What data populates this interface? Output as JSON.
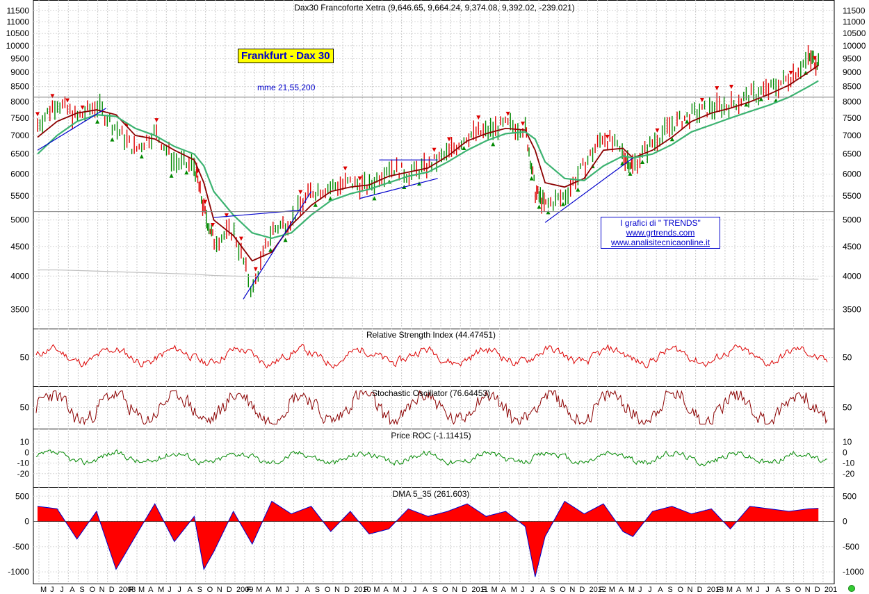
{
  "title": "Dax30 Francoforte Xetra (9,646.65, 9,664.24, 9,374.08, 9,392.02, -239.021)",
  "brand_label": "Frankfurt - Dax 30",
  "ma_label": "mme 21,55,200",
  "credit": {
    "line1": "I grafici di \" TRENDS\"",
    "line2": "www.grtrends.com",
    "line3": "www.analisitecnicaonline.it"
  },
  "colors": {
    "price_up": "#008800",
    "price_down": "#dd0000",
    "ma21": "#8b0000",
    "ma55": "#3cb371",
    "ma200": "#c0c0c0",
    "rsi": "#dd0000",
    "stochastic": "#8b0000",
    "roc": "#008800",
    "dma_fill": "#ff0000",
    "dma_line": "#0000cc",
    "trendline": "#0000cc"
  },
  "chart_data": [
    {
      "type": "line",
      "panel": "price",
      "title": "Dax30 Francoforte Xetra (9,646.65, 9,664.24, 9,374.08, 9,392.02, -239.021)",
      "scale": "log",
      "ylim": [
        3300,
        11800
      ],
      "y_ticks": [
        3500,
        4000,
        4500,
        5000,
        5500,
        6000,
        6500,
        7000,
        7500,
        8000,
        8500,
        9000,
        9500,
        10000,
        10500,
        11000,
        11500
      ],
      "x_labels": [
        "M",
        "J",
        "J",
        "A",
        "S",
        "O",
        "N",
        "D",
        "2008",
        "F",
        "M",
        "A",
        "M",
        "J",
        "J",
        "A",
        "S",
        "O",
        "N",
        "D",
        "2009",
        "F",
        "M",
        "A",
        "M",
        "J",
        "J",
        "A",
        "S",
        "O",
        "N",
        "D",
        "2010",
        "F",
        "M",
        "A",
        "M",
        "J",
        "J",
        "A",
        "S",
        "O",
        "N",
        "D",
        "2011",
        "F",
        "M",
        "A",
        "M",
        "J",
        "J",
        "A",
        "S",
        "O",
        "N",
        "D",
        "2012",
        "F",
        "M",
        "A",
        "M",
        "J",
        "J",
        "A",
        "S",
        "O",
        "N",
        "D",
        "2013",
        "F",
        "M",
        "A",
        "M",
        "J",
        "J",
        "A",
        "S",
        "O",
        "N",
        "D",
        "201"
      ],
      "x": [
        "2007-05",
        "2007-07",
        "2007-09",
        "2007-11",
        "2008-01",
        "2008-03",
        "2008-05",
        "2008-07",
        "2008-09",
        "2008-10",
        "2008-11",
        "2009-01",
        "2009-03",
        "2009-05",
        "2009-07",
        "2009-09",
        "2009-11",
        "2010-01",
        "2010-03",
        "2010-05",
        "2010-07",
        "2010-09",
        "2010-11",
        "2011-01",
        "2011-03",
        "2011-05",
        "2011-07",
        "2011-08",
        "2011-09",
        "2011-11",
        "2012-01",
        "2012-03",
        "2012-05",
        "2012-06",
        "2012-08",
        "2012-10",
        "2012-12",
        "2013-02",
        "2013-04",
        "2013-06",
        "2013-08",
        "2013-10",
        "2013-12",
        "2014-01"
      ],
      "series": [
        {
          "values": [
            7300,
            8000,
            7500,
            7900,
            7200,
            6600,
            7100,
            6300,
            6200,
            5200,
            4600,
            4800,
            3750,
            4800,
            5000,
            5600,
            5700,
            5800,
            5700,
            6200,
            6000,
            6200,
            6500,
            7000,
            7100,
            7300,
            7200,
            5600,
            5300,
            5500,
            6200,
            7000,
            6500,
            6200,
            6800,
            7300,
            7600,
            7800,
            7900,
            8200,
            8400,
            8800,
            9500,
            9400
          ]
        },
        {
          "values": [
            6950,
            7400,
            7650,
            7750,
            7600,
            7000,
            6900,
            6600,
            6350,
            5800,
            5000,
            4700,
            4250,
            4400,
            4900,
            5300,
            5600,
            5700,
            5750,
            5950,
            6050,
            6150,
            6450,
            6850,
            7050,
            7200,
            7150,
            6600,
            5800,
            5700,
            5900,
            6600,
            6650,
            6400,
            6600,
            6950,
            7400,
            7650,
            7800,
            8000,
            8250,
            8550,
            9000,
            9250
          ]
        },
        {
          "values": [
            6500,
            7000,
            7400,
            7600,
            7550,
            7200,
            7000,
            6700,
            6500,
            6200,
            5600,
            5100,
            4750,
            4650,
            4750,
            5100,
            5400,
            5550,
            5650,
            5800,
            5950,
            6050,
            6300,
            6600,
            6850,
            7050,
            7100,
            6900,
            6300,
            5900,
            5850,
            6200,
            6450,
            6400,
            6500,
            6750,
            7100,
            7300,
            7500,
            7700,
            7900,
            8150,
            8500,
            8700
          ]
        },
        {
          "values": [
            4100,
            4100,
            4090,
            4080,
            4070,
            4060,
            4050,
            4040,
            4030,
            4020,
            4010,
            4000,
            3995,
            3990,
            3985,
            3980,
            3975,
            3970,
            3965,
            3960,
            3960,
            3960,
            3960,
            3960,
            3960,
            3960,
            3960,
            3960,
            3960,
            3960,
            3960,
            3960,
            3960,
            3960,
            3960,
            3960,
            3960,
            3960,
            3960,
            3960,
            3960,
            3960,
            3950,
            3950
          ]
        }
      ]
    },
    {
      "type": "line",
      "panel": "rsi",
      "title": "Relative Strength Index (44.47451)",
      "ylim": [
        0,
        100
      ],
      "y_ticks": [
        50
      ],
      "last_value": 44.47451
    },
    {
      "type": "line",
      "panel": "stochastic",
      "title": "Stochastic Oscillator (76.64453)",
      "ylim": [
        0,
        100
      ],
      "y_ticks": [
        50
      ],
      "last_value": 76.64453
    },
    {
      "type": "line",
      "panel": "roc",
      "title": "Price ROC (-1.11415)",
      "ylim": [
        -30,
        20
      ],
      "y_ticks": [
        10,
        0,
        -10,
        -20
      ],
      "last_value": -1.11415
    },
    {
      "type": "area",
      "panel": "dma",
      "title": "DMA 5_35 (261.603)",
      "ylim": [
        -1150,
        600
      ],
      "y_ticks": [
        500,
        0,
        -500,
        -1000
      ],
      "last_value": 261.603,
      "x": [
        "2007-05",
        "2007-07",
        "2007-09",
        "2007-11",
        "2008-01",
        "2008-03",
        "2008-05",
        "2008-07",
        "2008-09",
        "2008-10",
        "2008-11",
        "2009-01",
        "2009-03",
        "2009-05",
        "2009-07",
        "2009-09",
        "2009-11",
        "2010-01",
        "2010-03",
        "2010-05",
        "2010-07",
        "2010-09",
        "2010-11",
        "2011-01",
        "2011-03",
        "2011-05",
        "2011-07",
        "2011-08",
        "2011-09",
        "2011-11",
        "2012-01",
        "2012-03",
        "2012-05",
        "2012-06",
        "2012-08",
        "2012-10",
        "2012-12",
        "2013-02",
        "2013-04",
        "2013-06",
        "2013-08",
        "2013-10",
        "2013-12",
        "2014-01"
      ],
      "values": [
        300,
        250,
        -350,
        200,
        -950,
        -300,
        350,
        -400,
        100,
        -950,
        -600,
        200,
        -450,
        400,
        150,
        300,
        -200,
        200,
        -250,
        -150,
        250,
        100,
        200,
        350,
        100,
        200,
        -100,
        -1100,
        -300,
        400,
        150,
        350,
        -200,
        -300,
        200,
        300,
        150,
        250,
        -150,
        300,
        250,
        200,
        250,
        260
      ]
    }
  ]
}
